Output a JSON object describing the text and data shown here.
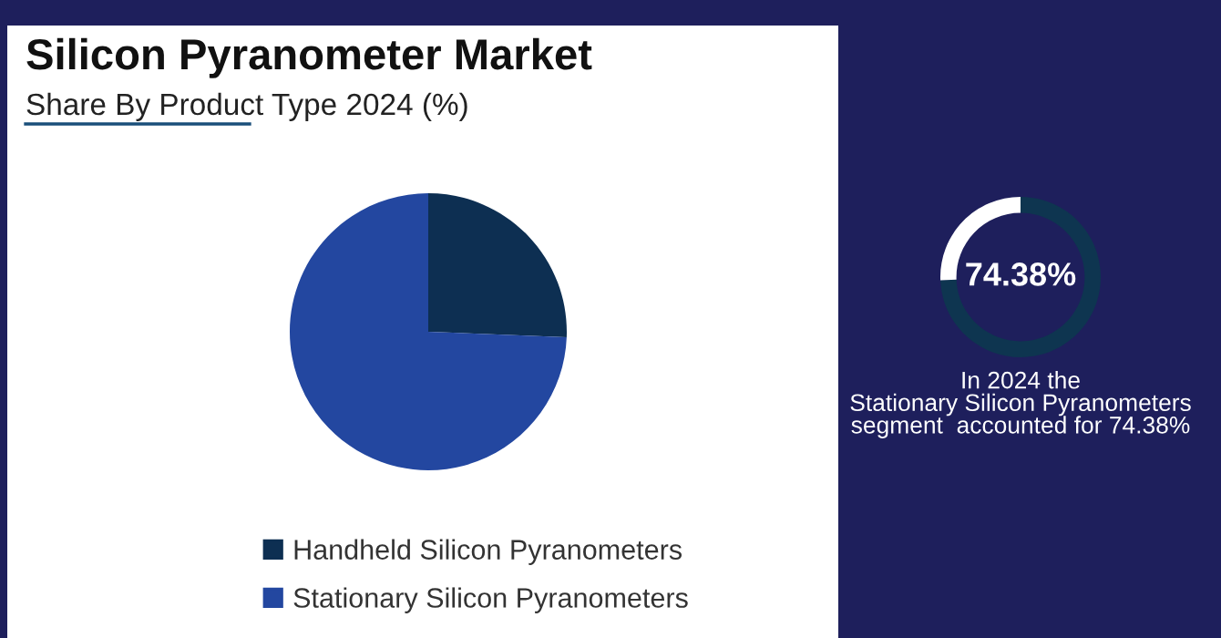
{
  "chart_data": [
    {
      "type": "pie",
      "title": "Silicon Pyranometer Market",
      "subtitle": "Share By Product Type 2024 (%)",
      "categories": [
        "Handheld Silicon Pyranometers",
        "Stationary Silicon Pyranometers"
      ],
      "values": [
        25.62,
        74.38
      ],
      "colors": [
        "#0d2f52",
        "#2347a0"
      ],
      "legend": "bottom"
    },
    {
      "type": "donut",
      "categories": [
        null,
        null
      ],
      "values": [
        74.38,
        25.62
      ],
      "colors": [
        "#0e3550",
        "#ffffff"
      ],
      "annotations": [
        "74.38%",
        "In 2024 the\nStationary Silicon Pyranometers\nsegment  accounted for 74.38%"
      ]
    }
  ]
}
